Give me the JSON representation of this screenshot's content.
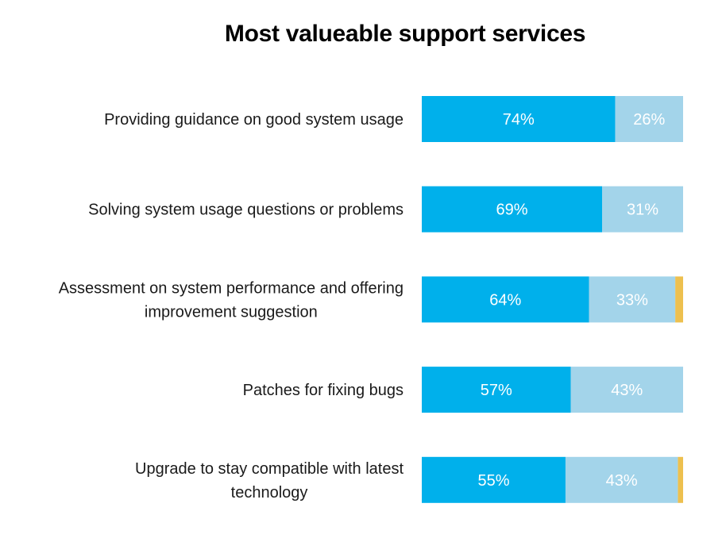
{
  "chart_data": {
    "type": "bar",
    "orientation": "horizontal",
    "stacked": true,
    "title": "Most valueable support services",
    "xlabel": "",
    "ylabel": "",
    "xlim": [
      0,
      100
    ],
    "grid": false,
    "legend": "none",
    "categories": [
      [
        "Providing guidance on good system usage"
      ],
      [
        "Solving system usage questions or problems"
      ],
      [
        "Assessment on system performance and offering",
        "improvement suggestion"
      ],
      [
        "Patches for fixing bugs"
      ],
      [
        "Upgrade to stay compatible with latest",
        "technology"
      ]
    ],
    "series": [
      {
        "name": "series-1",
        "color": "#00B0EB",
        "values": [
          74,
          69,
          64,
          57,
          55
        ],
        "labels": [
          "74%",
          "69%",
          "64%",
          "57%",
          "55%"
        ]
      },
      {
        "name": "series-2",
        "color": "#A3D4EA",
        "values": [
          26,
          31,
          33,
          43,
          43
        ],
        "labels": [
          "26%",
          "31%",
          "33%",
          "43%",
          "43%"
        ]
      },
      {
        "name": "series-3",
        "color": "#EDC04F",
        "values": [
          0,
          0,
          3,
          0,
          2
        ],
        "labels": [
          "",
          "",
          "",
          "",
          ""
        ]
      }
    ]
  }
}
